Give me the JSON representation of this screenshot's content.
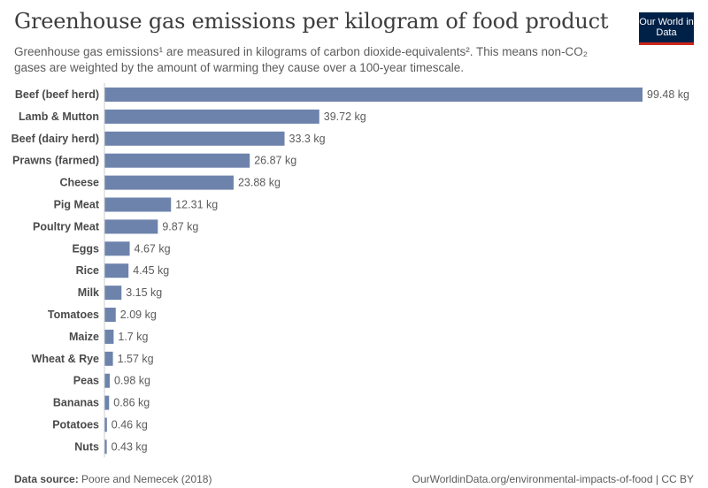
{
  "header": {
    "title": "Greenhouse gas emissions per kilogram of food product",
    "subtitle": "Greenhouse gas emissions¹ are measured in kilograms of carbon dioxide-equivalents². This means non-CO₂ gases are weighted by the amount of warming they cause over a 100-year timescale.",
    "logo": "Our World in Data"
  },
  "footer": {
    "source_label": "Data source:",
    "source_value": "Poore and Nemecek (2018)",
    "credit": "OurWorldinData.org/environmental-impacts-of-food | CC BY"
  },
  "colors": {
    "bar": "#6d83ac"
  },
  "chart_data": {
    "type": "bar",
    "orientation": "horizontal",
    "categories": [
      "Beef (beef herd)",
      "Lamb & Mutton",
      "Beef (dairy herd)",
      "Prawns (farmed)",
      "Cheese",
      "Pig Meat",
      "Poultry Meat",
      "Eggs",
      "Rice",
      "Milk",
      "Tomatoes",
      "Maize",
      "Wheat & Rye",
      "Peas",
      "Bananas",
      "Potatoes",
      "Nuts"
    ],
    "values": [
      99.48,
      39.72,
      33.3,
      26.87,
      23.88,
      12.31,
      9.87,
      4.67,
      4.45,
      3.15,
      2.09,
      1.7,
      1.57,
      0.98,
      0.86,
      0.46,
      0.43
    ],
    "value_labels": [
      "99.48 kg",
      "39.72 kg",
      "33.3 kg",
      "26.87 kg",
      "23.88 kg",
      "12.31 kg",
      "9.87 kg",
      "4.67 kg",
      "4.45 kg",
      "3.15 kg",
      "2.09 kg",
      "1.7 kg",
      "1.57 kg",
      "0.98 kg",
      "0.86 kg",
      "0.46 kg",
      "0.43 kg"
    ],
    "xlim": [
      0,
      99.48
    ],
    "grid": false
  }
}
